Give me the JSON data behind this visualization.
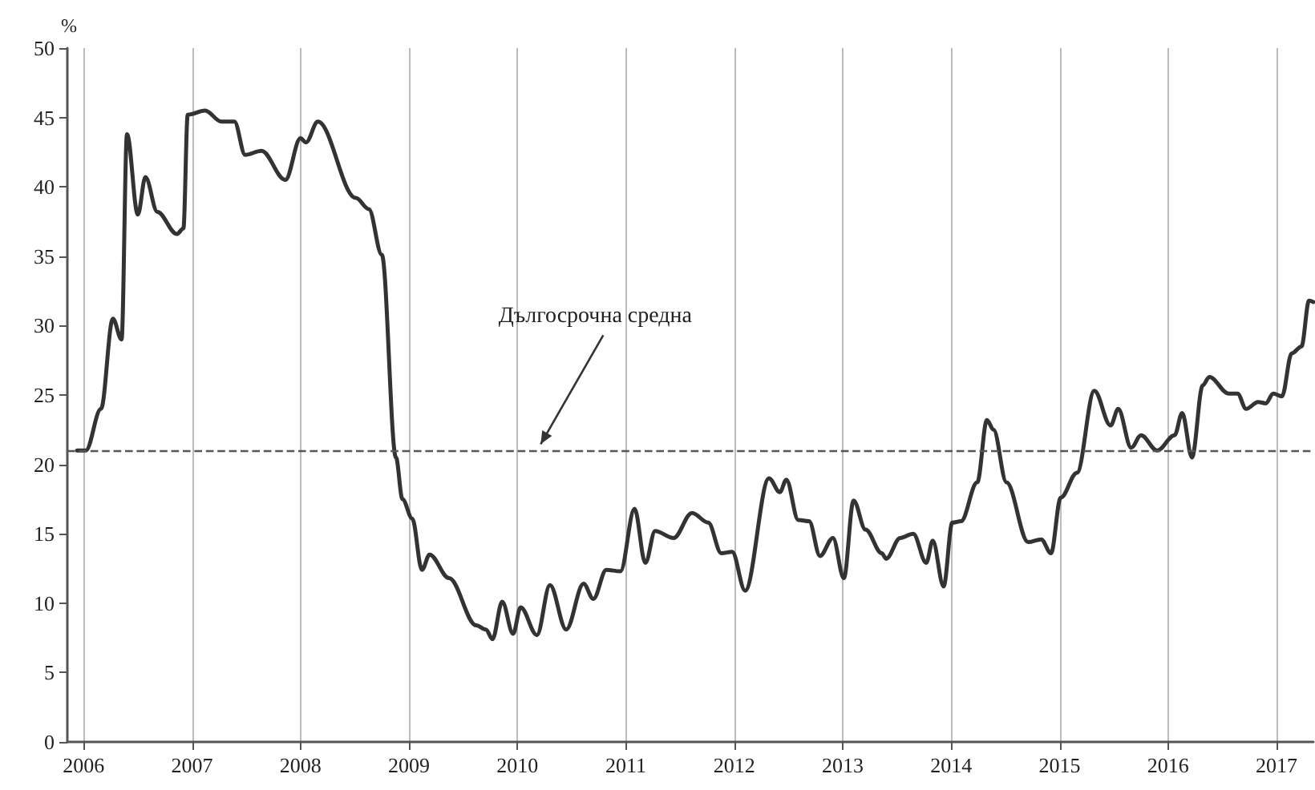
{
  "chart_data": {
    "type": "line",
    "ylabel": "%",
    "color": "#333333",
    "x": [
      2005.94,
      2006.02,
      2006.16,
      2006.27,
      2006.35,
      2006.4,
      2006.5,
      2006.57,
      2006.68,
      2006.86,
      2006.92,
      2006.96,
      2007.12,
      2007.27,
      2007.39,
      2007.49,
      2007.64,
      2007.86,
      2008.0,
      2008.05,
      2008.16,
      2008.51,
      2008.63,
      2008.75,
      2008.88,
      2008.94,
      2009.03,
      2009.12,
      2009.19,
      2009.37,
      2009.62,
      2009.71,
      2009.77,
      2009.86,
      2009.96,
      2010.03,
      2010.18,
      2010.3,
      2010.45,
      2010.61,
      2010.7,
      2010.82,
      2010.95,
      2011.08,
      2011.18,
      2011.27,
      2011.44,
      2011.61,
      2011.76,
      2011.88,
      2011.98,
      2012.1,
      2012.32,
      2012.42,
      2012.48,
      2012.59,
      2012.69,
      2012.79,
      2012.91,
      2013.01,
      2013.1,
      2013.21,
      2013.36,
      2013.4,
      2013.53,
      2013.65,
      2013.77,
      2013.83,
      2013.93,
      2014.01,
      2014.09,
      2014.24,
      2014.33,
      2014.39,
      2014.51,
      2014.71,
      2014.83,
      2014.92,
      2015.01,
      2015.16,
      2015.32,
      2015.47,
      2015.54,
      2015.66,
      2015.75,
      2015.9,
      2016.06,
      2016.13,
      2016.22,
      2016.32,
      2016.38,
      2016.56,
      2016.64,
      2016.72,
      2016.83,
      2016.9,
      2016.97,
      2017.05,
      2017.14,
      2017.23,
      2017.3,
      2017.34
    ],
    "values": [
      21.0,
      21.0,
      24.0,
      30.5,
      29.0,
      43.8,
      38.0,
      40.7,
      38.2,
      36.6,
      37.0,
      45.2,
      45.5,
      44.7,
      44.7,
      42.3,
      42.6,
      40.5,
      43.5,
      43.2,
      44.7,
      39.2,
      38.4,
      35.1,
      20.5,
      17.5,
      16.1,
      12.4,
      13.5,
      11.8,
      8.4,
      8.1,
      7.4,
      10.1,
      7.8,
      9.7,
      7.7,
      11.3,
      8.1,
      11.4,
      10.3,
      12.4,
      12.3,
      16.8,
      12.9,
      15.2,
      14.7,
      16.5,
      15.8,
      13.6,
      13.7,
      10.9,
      19.0,
      18.0,
      18.9,
      16.0,
      15.9,
      13.4,
      14.7,
      11.8,
      17.4,
      15.3,
      13.6,
      13.2,
      14.7,
      15.0,
      12.9,
      14.5,
      11.2,
      15.8,
      15.9,
      18.7,
      23.2,
      22.5,
      18.7,
      14.4,
      14.6,
      13.6,
      17.6,
      19.4,
      25.3,
      22.8,
      24.0,
      21.2,
      22.1,
      21.0,
      22.1,
      23.7,
      20.5,
      25.7,
      26.3,
      25.1,
      25.1,
      24.0,
      24.5,
      24.4,
      25.1,
      24.9,
      28.0,
      28.5,
      31.8,
      31.7
    ],
    "xlim": [
      2005.85,
      2017.34
    ],
    "xticks": [
      2006,
      2007,
      2008,
      2009,
      2010,
      2011,
      2012,
      2013,
      2014,
      2015,
      2016,
      2017
    ],
    "ylim": [
      0,
      50
    ],
    "yticks": [
      0,
      5,
      10,
      15,
      20,
      25,
      30,
      35,
      40,
      45,
      50
    ],
    "grid": "x",
    "marker": "none",
    "line_style": "solid",
    "ref_lines": [
      {
        "axis": "y",
        "value": 21,
        "color": "#555555",
        "line_style": "dashed"
      }
    ],
    "annotations": [
      {
        "text": "Дългосрочна средна",
        "x": 2010.2,
        "y": 21
      }
    ]
  }
}
